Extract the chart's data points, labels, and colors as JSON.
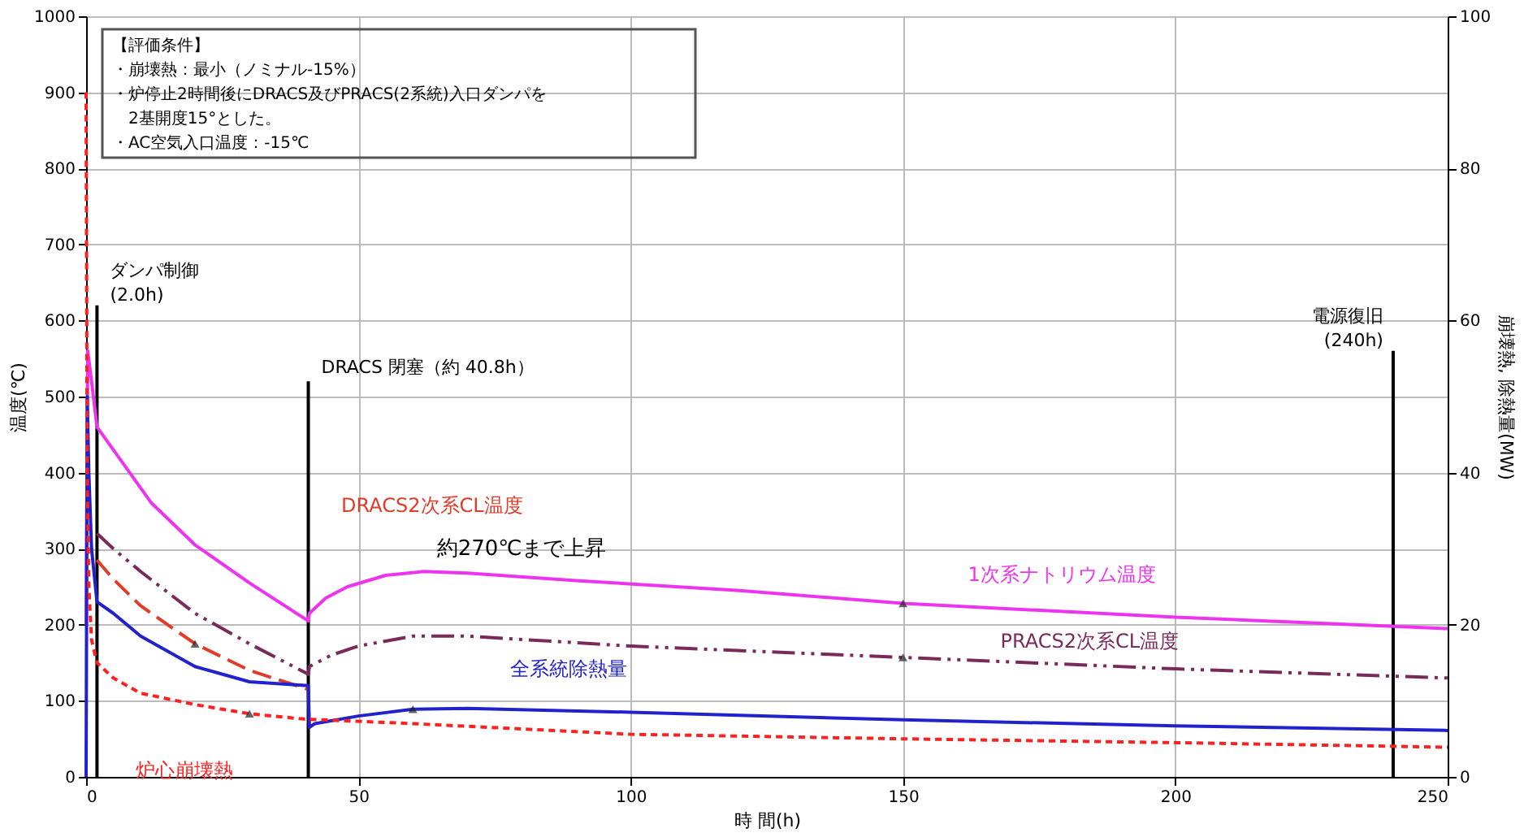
{
  "chart_data": {
    "type": "line",
    "xlabel": "時 間(h)",
    "ylabel": "温度(℃)",
    "y2label": "崩壊熱, 除熱量(MW)",
    "xlim": [
      0,
      250
    ],
    "xticks": [
      0,
      50,
      100,
      150,
      200,
      250
    ],
    "ylim": [
      0,
      1000
    ],
    "yticks": [
      0,
      100,
      200,
      300,
      400,
      500,
      600,
      700,
      800,
      900,
      1000
    ],
    "y2lim": [
      0,
      100
    ],
    "y2ticks": [
      0,
      20,
      40,
      60,
      80,
      100
    ],
    "grid": true,
    "marker": "none",
    "series": [
      {
        "name": "1次系ナトリウム温度",
        "color": "#ee33ee",
        "line_style": "solid",
        "x": [
          0,
          0.3,
          1,
          2,
          4,
          8,
          12,
          20,
          30,
          40.8,
          41,
          44,
          48,
          55,
          62,
          70,
          90,
          120,
          150,
          200,
          250
        ],
        "values": [
          200,
          560,
          520,
          460,
          440,
          400,
          360,
          305,
          255,
          205,
          215,
          235,
          250,
          265,
          270,
          268,
          258,
          245,
          228,
          210,
          195
        ]
      },
      {
        "name": "PRACS2次系CL温度",
        "color": "#7a2a5a",
        "line_style": "dashdot",
        "x": [
          2,
          5,
          10,
          20,
          30,
          40.8,
          41,
          45,
          50,
          60,
          70,
          100,
          150,
          200,
          250
        ],
        "values": [
          320,
          300,
          270,
          215,
          175,
          135,
          145,
          160,
          172,
          185,
          185,
          172,
          157,
          142,
          130
        ]
      },
      {
        "name": "DRACS2次系CL温度",
        "color": "#e03c28",
        "line_style": "dashed",
        "x": [
          2,
          5,
          10,
          20,
          30,
          40.8
        ],
        "values": [
          285,
          260,
          225,
          175,
          140,
          115
        ]
      },
      {
        "name": "全系統除熱量",
        "color": "#2222cc",
        "line_style": "solid",
        "axis": "y2",
        "x": [
          0,
          0.2,
          0.5,
          1,
          2,
          5,
          10,
          20,
          30,
          40.8,
          41,
          42,
          50,
          60,
          70,
          100,
          150,
          200,
          250
        ],
        "values": [
          0,
          50,
          40,
          30,
          23,
          21.5,
          18.5,
          14.5,
          12.5,
          12,
          6.5,
          7,
          8,
          8.9,
          9,
          8.5,
          7.5,
          6.7,
          6.1
        ]
      },
      {
        "name": "炉心崩壊熱",
        "color": "#ff2020",
        "line_style": "dotted",
        "axis": "y2",
        "x": [
          0,
          0.2,
          0.5,
          1,
          2,
          5,
          10,
          20,
          30,
          40,
          60,
          100,
          150,
          200,
          250
        ],
        "values": [
          90,
          40,
          25,
          18,
          15,
          13,
          11,
          9.5,
          8.3,
          7.6,
          7,
          5.6,
          5,
          4.5,
          3.9
        ]
      }
    ],
    "ref_lines": [
      {
        "axis": "x",
        "value": 2,
        "color": "#000000"
      },
      {
        "axis": "x",
        "value": 40.8,
        "color": "#000000"
      },
      {
        "axis": "x",
        "value": 240,
        "color": "#000000"
      }
    ],
    "annotations": [
      "【評価条件】",
      "・崩壊熱：最小（ノミナル-15%）",
      "・炉停止2時間後にDRACS及びPRACS(2系統)入口ダンパを2基開度15°とした。",
      "・AC空気入口温度：-15℃",
      {
        "text": "ダンパ制御\n(2.0h)",
        "x": 2,
        "y": 620
      },
      {
        "text": "DRACS 閉塞（約 40.8h）",
        "x": 40.8,
        "y": 520
      },
      {
        "text": "電源復旧\n(240h)",
        "x": 240,
        "y": 560
      },
      {
        "text": "約270℃まで上昇",
        "x": 62,
        "y": 270
      }
    ]
  }
}
